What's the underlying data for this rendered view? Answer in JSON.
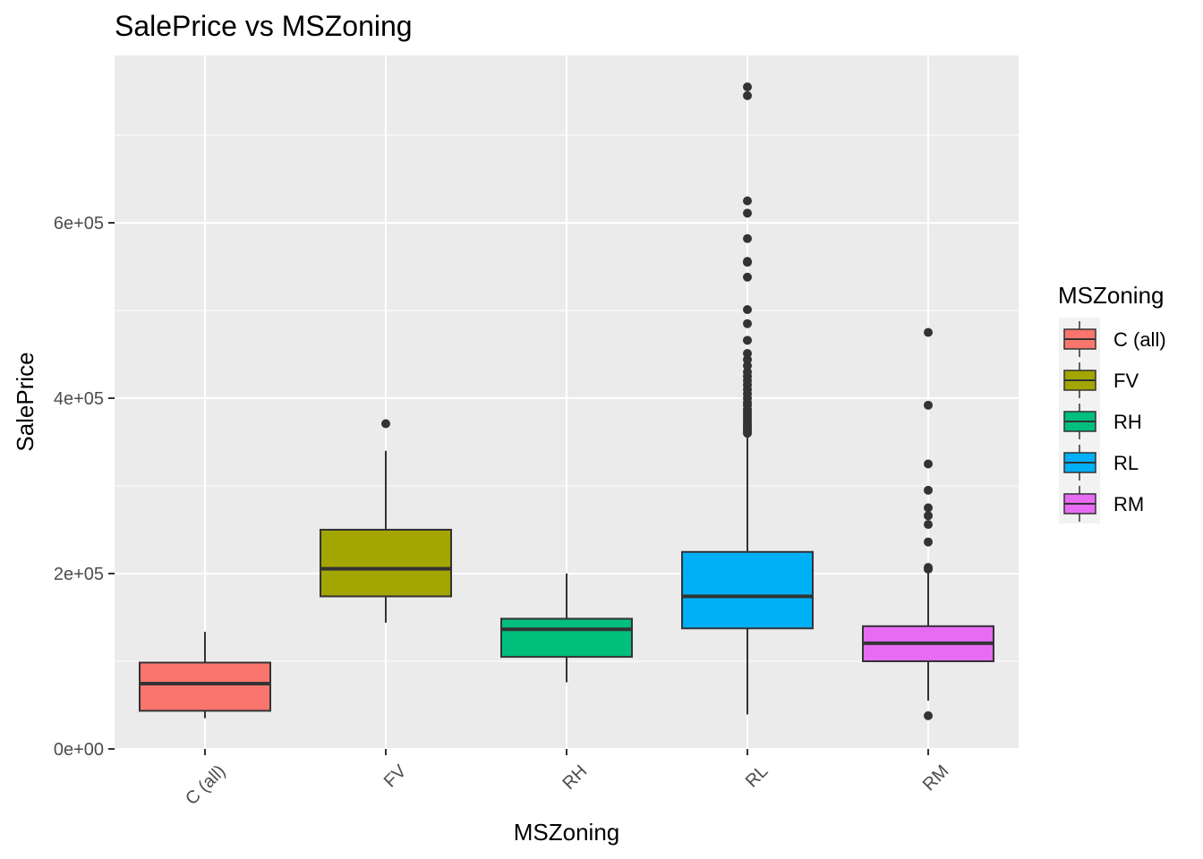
{
  "chart_data": {
    "type": "box",
    "title": "SalePrice vs MSZoning",
    "xlabel": "MSZoning",
    "ylabel": "SalePrice",
    "ylim": [
      0,
      780000
    ],
    "y_ticks": [
      0,
      200000,
      400000,
      600000
    ],
    "y_tick_labels": [
      "0e+00",
      "2e+05",
      "4e+05",
      "6e+05"
    ],
    "y_minor_ticks": [
      100000,
      300000,
      500000,
      700000
    ],
    "grid": true,
    "x_tick_rotation": 45,
    "categories": [
      "C (all)",
      "FV",
      "RH",
      "RL",
      "RM"
    ],
    "series": [
      {
        "name": "C (all)",
        "color": "#F8766D",
        "whisker_low": 35000,
        "q1": 43500,
        "median": 74500,
        "q3": 98500,
        "whisker_high": 133500,
        "outliers": []
      },
      {
        "name": "FV",
        "color": "#A3A500",
        "whisker_low": 144000,
        "q1": 174000,
        "median": 205500,
        "q3": 250000,
        "whisker_high": 340000,
        "outliers": [
          370900
        ]
      },
      {
        "name": "RH",
        "color": "#00BF7D",
        "whisker_low": 76000,
        "q1": 105000,
        "median": 136500,
        "q3": 148500,
        "whisker_high": 200000,
        "outliers": []
      },
      {
        "name": "RL",
        "color": "#00B0F6",
        "whisker_low": 39300,
        "q1": 137500,
        "median": 174000,
        "q3": 224700,
        "whisker_high": 355000,
        "outliers": [
          360000,
          362000,
          364000,
          367000,
          369000,
          372000,
          375000,
          378000,
          381000,
          384000,
          387000,
          392000,
          395000,
          400000,
          405000,
          410000,
          415000,
          420000,
          425000,
          430000,
          437000,
          444000,
          451000,
          466000,
          485000,
          501000,
          538000,
          556000,
          555000,
          582000,
          611000,
          625000,
          745000,
          755000
        ]
      },
      {
        "name": "RM",
        "color": "#E76BF3",
        "whisker_low": 55000,
        "q1": 100000,
        "median": 120500,
        "q3": 140000,
        "whisker_high": 200000,
        "outliers": [
          37900,
          205000,
          207000,
          236000,
          256000,
          266000,
          275000,
          295000,
          325000,
          392000,
          475000
        ]
      }
    ],
    "legend": {
      "title": "MSZoning",
      "position": "right",
      "entries": [
        "C (all)",
        "FV",
        "RH",
        "RL",
        "RM"
      ]
    }
  }
}
